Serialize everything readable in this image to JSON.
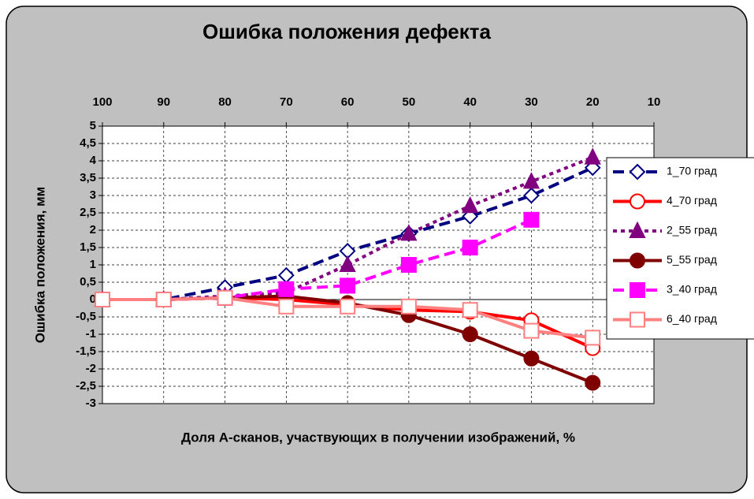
{
  "chart_data": {
    "type": "line",
    "title": "Ошибка положения дефекта",
    "x_label": "Доля А-сканов, участвующих в получении изображений, %",
    "y_label": "Ошибка положения, мм",
    "x": [
      100,
      90,
      80,
      70,
      60,
      50,
      40,
      30,
      20
    ],
    "xlim": [
      100,
      10
    ],
    "xticks": [
      100,
      90,
      80,
      70,
      60,
      50,
      40,
      30,
      20,
      10
    ],
    "x_axis_position": "top",
    "ylim": [
      -3,
      5
    ],
    "yticks": [
      {
        "value": -3,
        "label": "-3"
      },
      {
        "value": -2.5,
        "label": "-2,5"
      },
      {
        "value": -2,
        "label": "-2"
      },
      {
        "value": -1.5,
        "label": "-1,5"
      },
      {
        "value": -1,
        "label": "-1"
      },
      {
        "value": -0.5,
        "label": "-0,5"
      },
      {
        "value": 0,
        "label": "0"
      },
      {
        "value": 0.5,
        "label": "0,5"
      },
      {
        "value": 1,
        "label": "1"
      },
      {
        "value": 1.5,
        "label": "1,5"
      },
      {
        "value": 2,
        "label": "2"
      },
      {
        "value": 2.5,
        "label": "2,5"
      },
      {
        "value": 3,
        "label": "3"
      },
      {
        "value": 3.5,
        "label": "3,5"
      },
      {
        "value": 4,
        "label": "4"
      },
      {
        "value": 4.5,
        "label": "4,5"
      },
      {
        "value": 5,
        "label": "5"
      }
    ],
    "grid": true,
    "legend_position": "right",
    "series": [
      {
        "name": "1_70 град",
        "color": "#000080",
        "dash": "dashed",
        "marker": "diamond-open",
        "values": [
          0,
          0,
          0.35,
          0.7,
          1.4,
          1.9,
          2.4,
          3.0,
          3.8
        ]
      },
      {
        "name": "4_70 град",
        "color": "#ff0000",
        "dash": "solid",
        "marker": "circle-open",
        "values": [
          0,
          0,
          0.05,
          0,
          -0.15,
          -0.3,
          -0.35,
          -0.6,
          -1.4
        ]
      },
      {
        "name": "2_55 град",
        "color": "#800080",
        "dash": "dotted",
        "marker": "triangle",
        "values": [
          0,
          0,
          0.1,
          0.2,
          1.0,
          1.9,
          2.7,
          3.4,
          4.1
        ]
      },
      {
        "name": "5_55 град",
        "color": "#800000",
        "dash": "solid",
        "marker": "circle",
        "values": [
          0,
          0,
          0.05,
          0.1,
          -0.1,
          -0.45,
          -1.0,
          -1.7,
          -2.4
        ]
      },
      {
        "name": "3_40 град",
        "color": "#ff00ff",
        "dash": "dashed",
        "marker": "square",
        "values": [
          0,
          0,
          0.05,
          0.3,
          0.4,
          1.0,
          1.5,
          2.3,
          null
        ]
      },
      {
        "name": "6_40 град",
        "color": "#ff8080",
        "dash": "solid",
        "marker": "square-open",
        "values": [
          0,
          0,
          0.05,
          -0.2,
          -0.2,
          -0.2,
          -0.3,
          -0.9,
          -1.1
        ]
      }
    ]
  }
}
